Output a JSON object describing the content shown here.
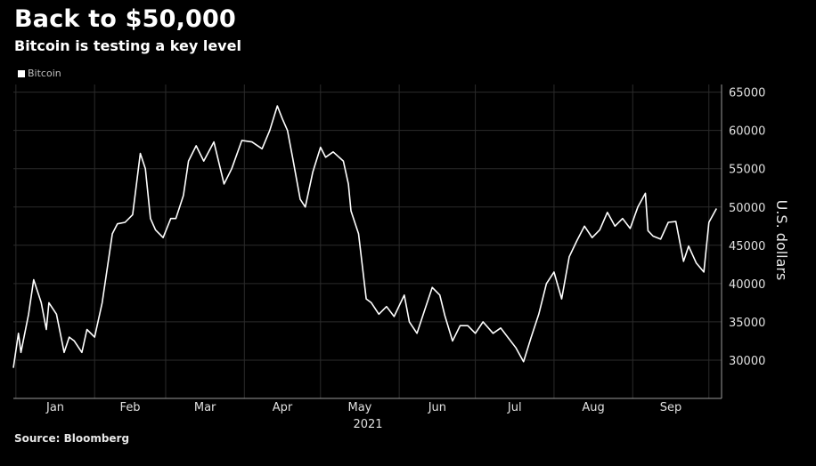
{
  "header": {
    "title": "Back to $50,000",
    "subtitle": "Bitcoin is testing a key level",
    "source": "Source: Bloomberg"
  },
  "colors": {
    "background": "#000000",
    "line": "#ffffff",
    "grid": "#2b2b2b"
  },
  "chart_data": {
    "type": "line",
    "title": "Back to $50,000",
    "subtitle": "Bitcoin is testing a key level",
    "xlabel": "2021",
    "ylabel": "U.S. dollars",
    "ylim": [
      25000,
      66000
    ],
    "yticks": [
      30000,
      35000,
      40000,
      45000,
      50000,
      55000,
      60000,
      65000
    ],
    "ytick_labels": [
      "30000",
      "35000",
      "40000",
      "45000",
      "50000",
      "55000",
      "60000",
      "65000"
    ],
    "xticks": [
      "Jan",
      "Feb",
      "Mar",
      "Apr",
      "May",
      "Jun",
      "Jul",
      "Aug",
      "Sep"
    ],
    "x_year_label": "2021",
    "grid": true,
    "legend": "top-left",
    "series": [
      {
        "name": "Bitcoin",
        "x": [
          "2020-12-31",
          "2021-01-02",
          "2021-01-03",
          "2021-01-06",
          "2021-01-08",
          "2021-01-11",
          "2021-01-13",
          "2021-01-14",
          "2021-01-17",
          "2021-01-20",
          "2021-01-22",
          "2021-01-24",
          "2021-01-27",
          "2021-01-29",
          "2021-02-01",
          "2021-02-04",
          "2021-02-08",
          "2021-02-10",
          "2021-02-13",
          "2021-02-16",
          "2021-02-19",
          "2021-02-21",
          "2021-02-23",
          "2021-02-25",
          "2021-02-28",
          "2021-03-03",
          "2021-03-05",
          "2021-03-08",
          "2021-03-10",
          "2021-03-13",
          "2021-03-16",
          "2021-03-20",
          "2021-03-24",
          "2021-03-27",
          "2021-03-31",
          "2021-04-04",
          "2021-04-08",
          "2021-04-11",
          "2021-04-14",
          "2021-04-16",
          "2021-04-18",
          "2021-04-20",
          "2021-04-23",
          "2021-04-25",
          "2021-04-28",
          "2021-05-01",
          "2021-05-03",
          "2021-05-06",
          "2021-05-10",
          "2021-05-12",
          "2021-05-13",
          "2021-05-16",
          "2021-05-19",
          "2021-05-21",
          "2021-05-24",
          "2021-05-27",
          "2021-05-30",
          "2021-06-03",
          "2021-06-05",
          "2021-06-08",
          "2021-06-11",
          "2021-06-14",
          "2021-06-17",
          "2021-06-19",
          "2021-06-22",
          "2021-06-25",
          "2021-06-28",
          "2021-07-01",
          "2021-07-04",
          "2021-07-08",
          "2021-07-11",
          "2021-07-14",
          "2021-07-17",
          "2021-07-20",
          "2021-07-23",
          "2021-07-26",
          "2021-07-29",
          "2021-08-01",
          "2021-08-04",
          "2021-08-07",
          "2021-08-10",
          "2021-08-13",
          "2021-08-16",
          "2021-08-19",
          "2021-08-22",
          "2021-08-25",
          "2021-08-28",
          "2021-08-31",
          "2021-09-03",
          "2021-09-06",
          "2021-09-07",
          "2021-09-09",
          "2021-09-12",
          "2021-09-15",
          "2021-09-18",
          "2021-09-21",
          "2021-09-23",
          "2021-09-26",
          "2021-09-29",
          "2021-10-01",
          "2021-10-04"
        ],
        "values": [
          29000,
          33500,
          31000,
          36000,
          40500,
          37500,
          34000,
          37500,
          36000,
          31000,
          33000,
          32500,
          31000,
          34000,
          33000,
          37500,
          46500,
          47800,
          48000,
          49000,
          57000,
          55000,
          48500,
          47000,
          46000,
          48500,
          48500,
          51500,
          56000,
          58000,
          56000,
          58500,
          53000,
          55000,
          58700,
          58500,
          57600,
          60000,
          63200,
          61500,
          60000,
          56500,
          51000,
          50000,
          54600,
          57800,
          56500,
          57200,
          56000,
          53000,
          49500,
          46500,
          38000,
          37500,
          36000,
          37000,
          35700,
          38500,
          35000,
          33500,
          36500,
          39500,
          38500,
          35800,
          32500,
          34500,
          34500,
          33500,
          35000,
          33500,
          34200,
          32900,
          31600,
          29800,
          33000,
          36000,
          40000,
          41500,
          38000,
          43500,
          45600,
          47500,
          46000,
          47000,
          49300,
          47500,
          48500,
          47200,
          50000,
          51800,
          46900,
          46200,
          45800,
          48000,
          48100,
          42900,
          44900,
          42700,
          41500,
          48000,
          49800
        ]
      }
    ]
  }
}
